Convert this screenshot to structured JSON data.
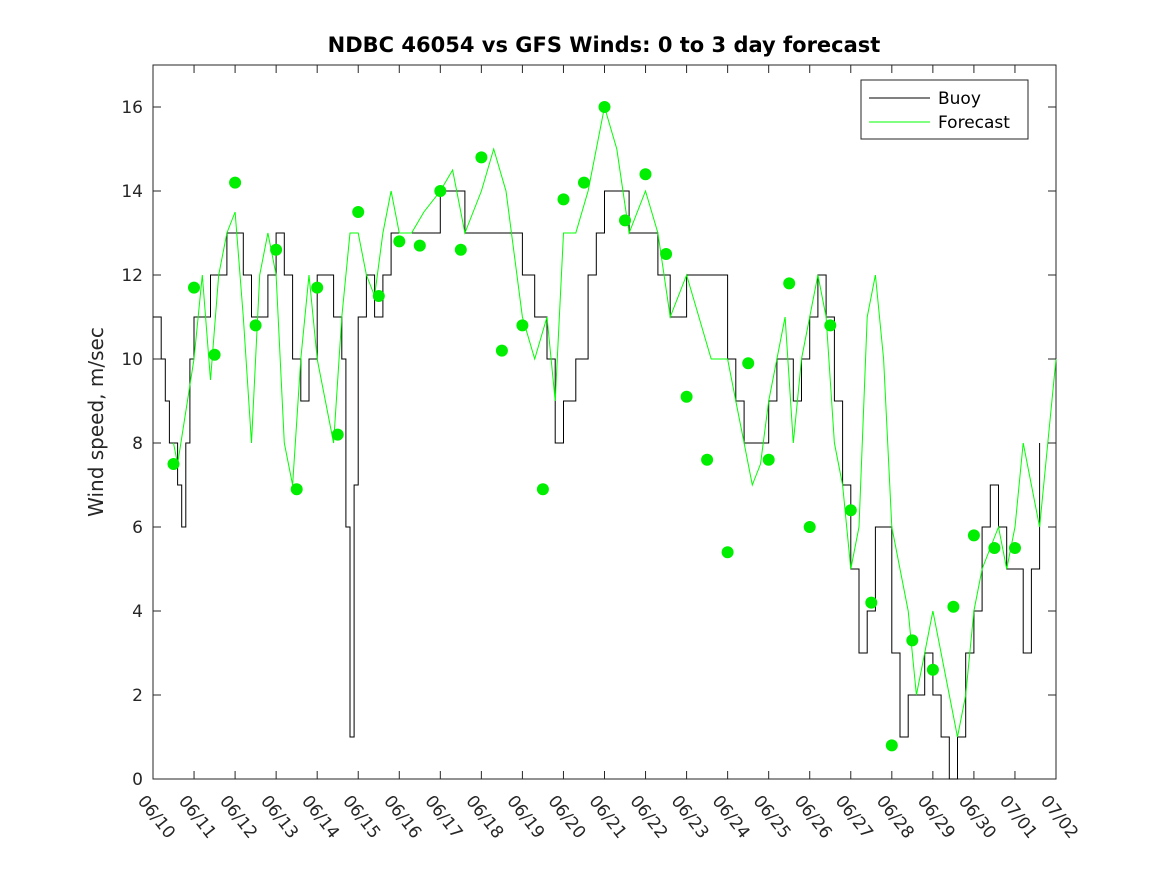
{
  "chart_data": {
    "type": "line",
    "title": "NDBC 46054 vs GFS Winds: 0 to 3 day forecast",
    "xlabel": "",
    "ylabel": "Wind speed, m/sec",
    "x_tick_labels": [
      "06/10",
      "06/11",
      "06/12",
      "06/13",
      "06/14",
      "06/15",
      "06/16",
      "06/17",
      "06/18",
      "06/19",
      "06/20",
      "06/21",
      "06/22",
      "06/23",
      "06/24",
      "06/25",
      "06/26",
      "06/27",
      "06/28",
      "06/29",
      "06/30",
      "07/01",
      "07/02"
    ],
    "x_range_days": [
      0,
      22
    ],
    "ylim": [
      0,
      17
    ],
    "y_ticks": [
      0,
      2,
      4,
      6,
      8,
      10,
      12,
      14,
      16
    ],
    "grid": false,
    "legend": {
      "position": "top-right",
      "entries": [
        "Buoy",
        "Forecast"
      ]
    },
    "colors": {
      "buoy": "#000000",
      "forecast": "#00ff00",
      "marker": "#00ee00"
    },
    "series": [
      {
        "name": "Buoy",
        "x_days": [
          0,
          0.1,
          0.2,
          0.3,
          0.4,
          0.5,
          0.6,
          0.7,
          0.8,
          0.9,
          1.0,
          1.2,
          1.4,
          1.6,
          1.8,
          2.0,
          2.2,
          2.4,
          2.6,
          2.8,
          3.0,
          3.2,
          3.4,
          3.6,
          3.8,
          4.0,
          4.2,
          4.4,
          4.6,
          4.7,
          4.8,
          4.9,
          5.0,
          5.2,
          5.4,
          5.6,
          5.8,
          6.0,
          6.3,
          6.6,
          7.0,
          7.3,
          7.6,
          8.0,
          8.3,
          8.6,
          9.0,
          9.3,
          9.6,
          9.8,
          10.0,
          10.3,
          10.6,
          10.8,
          11.0,
          11.3,
          11.6,
          12.0,
          12.3,
          12.6,
          13.0,
          13.3,
          13.6,
          14.0,
          14.2,
          14.4,
          14.6,
          14.8,
          15.0,
          15.2,
          15.4,
          15.6,
          15.8,
          16.0,
          16.2,
          16.4,
          16.6,
          16.8,
          17.0,
          17.2,
          17.4,
          17.6,
          17.8,
          18.0,
          18.2,
          18.4,
          18.6,
          18.8,
          19.0,
          19.2,
          19.4,
          19.6,
          19.8,
          20.0,
          20.2,
          20.4,
          20.6,
          20.8,
          21.0,
          21.2,
          21.4,
          21.6
        ],
        "values": [
          11,
          11,
          10,
          9,
          8,
          8,
          7,
          6,
          8,
          10,
          11,
          11,
          12,
          12,
          13,
          13,
          12,
          11,
          11,
          12,
          13,
          12,
          10,
          9,
          10,
          12,
          12,
          11,
          10,
          6,
          1,
          7,
          11,
          12,
          11,
          12,
          13,
          13,
          13,
          13,
          14,
          14,
          13,
          13,
          13,
          13,
          12,
          11,
          10,
          8,
          9,
          10,
          12,
          13,
          14,
          14,
          13,
          13,
          12,
          11,
          12,
          12,
          12,
          10,
          9,
          8,
          8,
          8,
          9,
          10,
          10,
          9,
          10,
          11,
          12,
          11,
          9,
          7,
          5,
          3,
          4,
          6,
          6,
          3,
          1,
          2,
          2,
          3,
          2,
          1,
          0,
          1,
          3,
          4,
          6,
          7,
          6,
          5,
          5,
          3,
          5,
          8
        ]
      },
      {
        "name": "Forecast",
        "x_days": [
          0.5,
          0.6,
          1.0,
          1.2,
          1.4,
          1.6,
          1.8,
          2.0,
          2.2,
          2.4,
          2.6,
          2.8,
          3.0,
          3.2,
          3.4,
          3.6,
          3.8,
          4.0,
          4.2,
          4.4,
          4.6,
          4.8,
          5.0,
          5.2,
          5.4,
          5.6,
          5.8,
          6.0,
          6.3,
          6.6,
          7.0,
          7.3,
          7.6,
          8.0,
          8.3,
          8.6,
          9.0,
          9.3,
          9.6,
          9.8,
          10.0,
          10.3,
          10.6,
          10.8,
          11.0,
          11.3,
          11.6,
          12.0,
          12.3,
          12.6,
          13.0,
          13.3,
          13.6,
          14.0,
          14.2,
          14.4,
          14.6,
          14.8,
          15.0,
          15.2,
          15.4,
          15.6,
          15.8,
          16.0,
          16.2,
          16.4,
          16.6,
          16.8,
          17.0,
          17.2,
          17.4,
          17.6,
          17.8,
          18.0,
          18.2,
          18.4,
          18.6,
          18.8,
          19.0,
          19.2,
          19.4,
          19.6,
          19.8,
          20.0,
          20.2,
          20.4,
          20.6,
          20.8,
          21.0,
          21.2,
          21.4,
          21.6,
          21.8,
          22.0
        ],
        "values": [
          8,
          7.5,
          10,
          12,
          9.5,
          12,
          13,
          13.5,
          11,
          8,
          12,
          13,
          12,
          8,
          7,
          10,
          12,
          10,
          9,
          8,
          11,
          13,
          13,
          12,
          11.5,
          13,
          14,
          13,
          13,
          13.5,
          14,
          14.5,
          13,
          14,
          15,
          14,
          11,
          10,
          11,
          9,
          13,
          13,
          14,
          15,
          16,
          15,
          13,
          14,
          13,
          11,
          12,
          11,
          10,
          10,
          9,
          8,
          7,
          7.5,
          9,
          10,
          11,
          8,
          10,
          11,
          12,
          11,
          8,
          7,
          5,
          6,
          11,
          12,
          10,
          6,
          5,
          4,
          2,
          3,
          4,
          3,
          2,
          1,
          2,
          4,
          5,
          5.5,
          6,
          5,
          6,
          8,
          7,
          6,
          8,
          10
        ]
      }
    ],
    "forecast_markers": {
      "x_days": [
        0.5,
        1.0,
        1.5,
        2.0,
        2.5,
        3.0,
        3.5,
        4.0,
        4.5,
        5.0,
        5.5,
        6.0,
        6.5,
        7.0,
        7.5,
        8.0,
        8.5,
        9.0,
        9.5,
        10.0,
        10.5,
        11.0,
        11.5,
        12.0,
        12.5,
        13.0,
        13.5,
        14.0,
        14.5,
        15.0,
        15.5,
        16.0,
        16.5,
        17.0,
        17.5,
        18.0,
        18.5,
        19.0,
        19.5,
        20.0,
        20.5,
        21.0
      ],
      "values": [
        7.5,
        11.7,
        10.1,
        14.2,
        10.8,
        12.6,
        6.9,
        11.7,
        8.2,
        13.5,
        11.5,
        12.8,
        12.7,
        14.0,
        12.6,
        14.8,
        10.2,
        10.8,
        6.9,
        13.8,
        14.2,
        16.0,
        13.3,
        14.4,
        12.5,
        9.1,
        7.6,
        5.4,
        9.9,
        7.6,
        11.8,
        6.0,
        10.8,
        6.4,
        4.2,
        0.8,
        3.3,
        2.6,
        4.1,
        5.8,
        5.5,
        5.5
      ]
    }
  }
}
